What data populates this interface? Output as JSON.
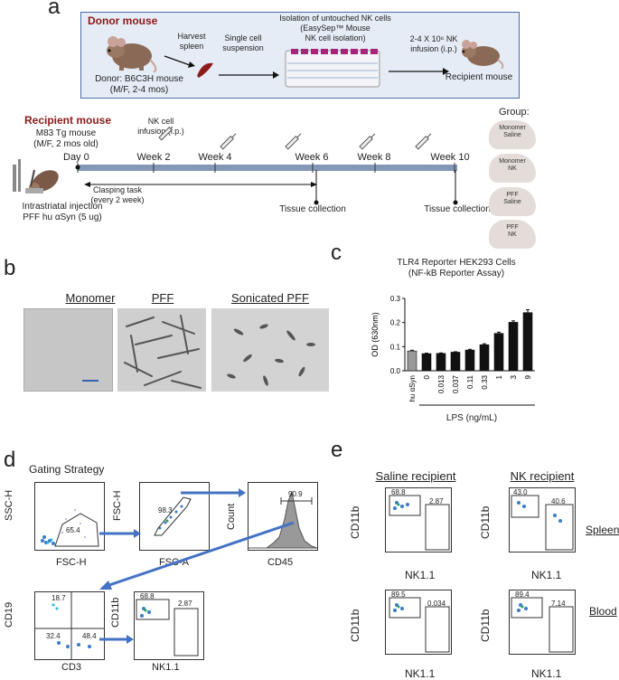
{
  "panel_a": {
    "letter": "a",
    "donor_title": "Donor mouse",
    "donor_desc_1": "Donor: B6C3H mouse",
    "donor_desc_2": "(M/F, 2-4 mos)",
    "harvest_1": "Harvest",
    "harvest_2": "spleen",
    "single_1": "Single cell",
    "single_2": "suspension",
    "isolation_1": "Isolation of untouched NK cells",
    "isolation_2": "(EasySep™ Mouse",
    "isolation_3": "NK cell isolation)",
    "infusion_1": "2-4 X 10⁶ NK",
    "infusion_2": "infusion (i.p.)",
    "recipient_label": "Recipient mouse",
    "recipient_title": "Recipient mouse",
    "m83_1": "M83 Tg mouse",
    "m83_2": "(M/F, 2 mos old)",
    "nk_infusion_1": "NK cell",
    "nk_infusion_2": "infusion (i.p.)",
    "day0": "Day 0",
    "weeks": [
      "Week 2",
      "Week 4",
      "Week 6",
      "Week 8",
      "Week 10"
    ],
    "clasping_1": "Clasping task",
    "clasping_2": "(every 2 week)",
    "tissue_1": "Tissue collection",
    "tissue_2": "Tissue collection",
    "injection_1": "Intrastriatal injection",
    "injection_2": "PFF hu αSyn (5 ug)",
    "group_title": "Group:",
    "groups": [
      {
        "line1": "Monomer",
        "line2": "Saline"
      },
      {
        "line1": "Monomer",
        "line2": "NK"
      },
      {
        "line1": "PFF",
        "line2": "Saline"
      },
      {
        "line1": "PFF",
        "line2": "NK"
      }
    ]
  },
  "panel_b": {
    "letter": "b",
    "labels": [
      "Monomer",
      "PFF",
      "Sonicated PFF"
    ]
  },
  "panel_c": {
    "letter": "c",
    "title_1": "TLR4 Reporter HEK293 Cells",
    "title_2": "(NF-kB Reporter Assay)",
    "xlabel": "LPS (ng/mL)"
  },
  "chart_data": {
    "type": "bar",
    "title": "TLR4 Reporter HEK293 Cells (NF-kB Reporter Assay)",
    "categories": [
      "hu αSyn",
      "0",
      "0.013",
      "0.037",
      "0.11",
      "0.33",
      "1",
      "3",
      "9"
    ],
    "values": [
      0.082,
      0.071,
      0.072,
      0.077,
      0.086,
      0.108,
      0.155,
      0.201,
      0.241
    ],
    "errors": [
      0.003,
      0.002,
      0.002,
      0.002,
      0.003,
      0.004,
      0.005,
      0.006,
      0.012
    ],
    "bar_colors": [
      "#999999",
      "#111111",
      "#111111",
      "#111111",
      "#111111",
      "#111111",
      "#111111",
      "#111111",
      "#111111"
    ],
    "xlabel": "LPS (ng/mL)",
    "ylabel": "OD (630nm)",
    "ylim": [
      0,
      0.3
    ],
    "yticks": [
      "0.0",
      "0.1",
      "0.2",
      "0.3"
    ]
  },
  "panel_d": {
    "letter": "d",
    "title": "Gating Strategy",
    "plot1": {
      "x": "FSC-H",
      "y": "SSC-H",
      "gate": "65.4"
    },
    "plot2": {
      "x": "FSC-A",
      "y": "FSC-H",
      "gate": "98.3"
    },
    "plot3": {
      "x": "CD45",
      "y": "Count",
      "gate": "90.9"
    },
    "plot4": {
      "x": "CD3",
      "y": "CD19",
      "q_tl": "18.7",
      "q_bl": "32.4",
      "q_br": "48.4"
    },
    "plot5": {
      "x": "NK1.1",
      "y": "CD11b",
      "g1": "68.8",
      "g2": "2.87"
    }
  },
  "panel_e": {
    "letter": "e",
    "col1": "Saline recipient",
    "col2": "NK recipient",
    "row1": "Spleen",
    "row2": "Blood",
    "xlabel": "NK1.1",
    "ylabel": "CD11b",
    "spleen_saline": {
      "g1": "68.8",
      "g2": "2.87"
    },
    "spleen_nk": {
      "g1": "43.0",
      "g2": "40.6"
    },
    "blood_saline": {
      "g1": "89.5",
      "g2": "0.034"
    },
    "blood_nk": {
      "g1": "89.4",
      "g2": "7.14"
    }
  }
}
